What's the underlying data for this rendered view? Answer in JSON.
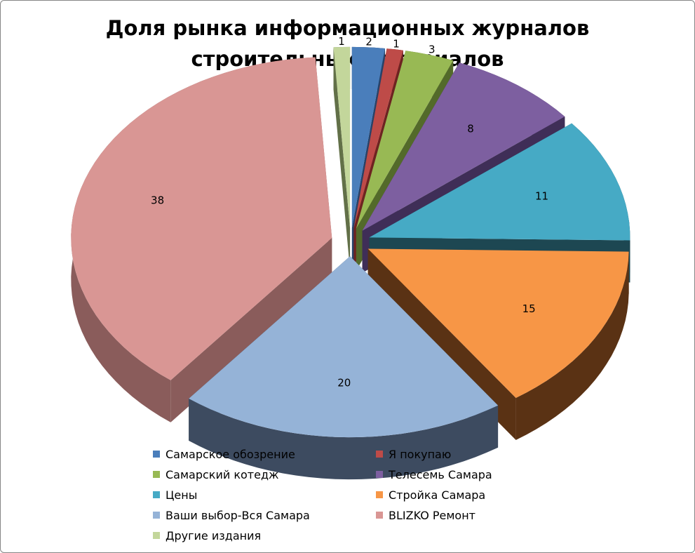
{
  "chart_data": {
    "type": "pie",
    "title_lines": [
      "Доля рынка информационных журналов",
      "строительных материалов"
    ],
    "categories": [
      "Самарское обозрение",
      "Я покупаю",
      "Самарский котедж",
      "Телесемь Самара",
      "Цены",
      "Стройка Самара",
      "Ваши выбор-Вся Самара",
      "BLIZKO Ремонт",
      "Другие издания"
    ],
    "values": [
      2,
      1,
      3,
      8,
      11,
      15,
      20,
      38,
      1
    ],
    "colors": [
      "#4a7ebb",
      "#be4b48",
      "#98b954",
      "#7d5fa0",
      "#46aac5",
      "#f79646",
      "#95b3d7",
      "#d99694",
      "#c3d69b"
    ],
    "side_colors": [
      "#27436a",
      "#6e2321",
      "#536a2a",
      "#3f2e57",
      "#1d4752",
      "#5a3214",
      "#3d4b60",
      "#8a5c5b",
      "#627048"
    ],
    "legend_position": "bottom",
    "legend_layout": [
      [
        "Самарское обозрение",
        "Я покупаю"
      ],
      [
        "Самарский котедж",
        "Телесемь Самара"
      ],
      [
        "Цены",
        "Стройка Самара"
      ],
      [
        "Ваши выбор-Вся Самара",
        "BLIZKO Ремонт"
      ],
      [
        "Другие издания"
      ]
    ],
    "exploded": true,
    "three_d": true
  }
}
